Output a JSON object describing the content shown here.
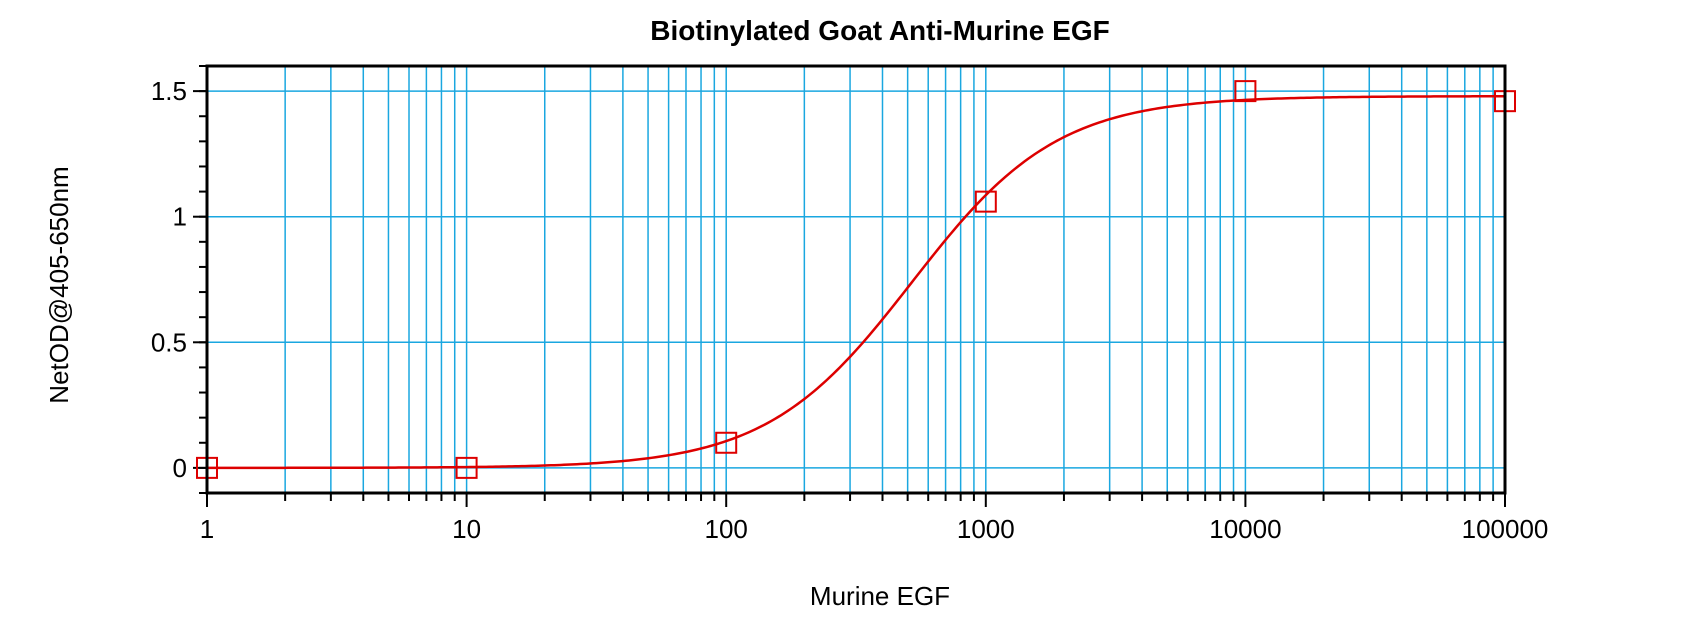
{
  "chart_data": {
    "type": "scatter",
    "title": "Biotinylated Goat Anti-Murine EGF",
    "xlabel": "Murine EGF",
    "ylabel": "NetOD@405-650nm",
    "x_scale": "log",
    "xlim": [
      1,
      100000
    ],
    "ylim": [
      -0.1,
      1.6
    ],
    "x_ticks": [
      1,
      10,
      100,
      1000,
      10000,
      100000
    ],
    "x_tick_labels": [
      "1",
      "10",
      "100",
      "1000",
      "10000",
      "100000"
    ],
    "y_ticks": [
      0,
      0.5,
      1,
      1.5
    ],
    "y_tick_labels": [
      "0",
      "0.5",
      "1",
      "1.5"
    ],
    "grid": true,
    "points": {
      "x": [
        1,
        10,
        100,
        1000,
        10000,
        100000
      ],
      "y": [
        0.0,
        0.0,
        0.1,
        1.06,
        1.5,
        1.46
      ]
    },
    "fit": {
      "type": "4PL",
      "bottom": 0.0,
      "top": 1.48,
      "ec50": 520,
      "hill": 1.55
    },
    "colors": {
      "grid": "#1aa7e0",
      "data": "#dd0000",
      "axis": "#000000"
    }
  }
}
